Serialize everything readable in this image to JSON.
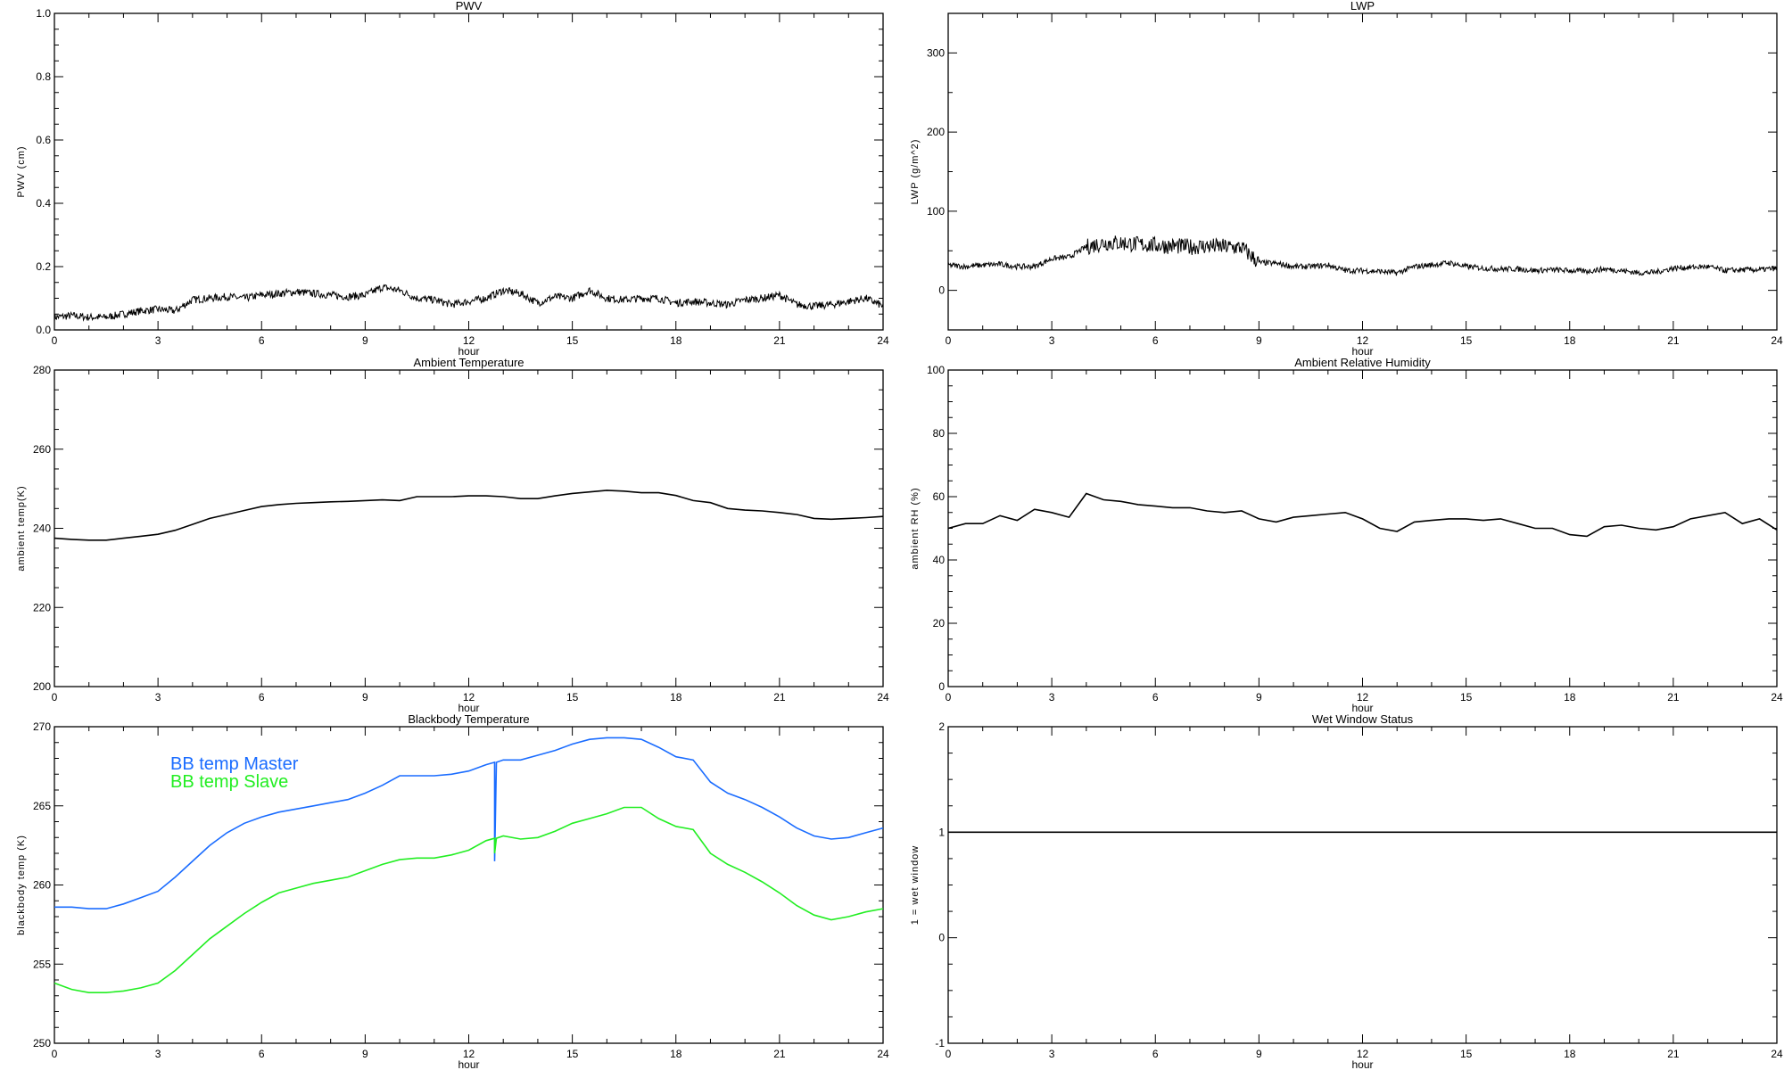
{
  "chart_data": [
    {
      "id": "pwv",
      "type": "line",
      "title": "PWV",
      "xlabel": "hour",
      "ylabel": "PWV (cm)",
      "xlim": [
        0,
        24
      ],
      "ylim": [
        0,
        1.0
      ],
      "xticks": [
        "0",
        "3",
        "6",
        "9",
        "12",
        "15",
        "18",
        "21",
        "24"
      ],
      "yticks": [
        "0.0",
        "0.2",
        "0.4",
        "0.6",
        "0.8",
        "1.0"
      ],
      "ytick_values": [
        0,
        0.2,
        0.4,
        0.6,
        0.8,
        1.0
      ],
      "yminor_step": 0.05,
      "noise_amplitude": 0.012,
      "series": [
        {
          "name": "PWV",
          "color": "#000000",
          "x_step_hours": 0.5,
          "values": [
            0.04,
            0.045,
            0.04,
            0.04,
            0.05,
            0.06,
            0.065,
            0.06,
            0.095,
            0.1,
            0.105,
            0.1,
            0.11,
            0.115,
            0.12,
            0.115,
            0.11,
            0.105,
            0.11,
            0.135,
            0.125,
            0.1,
            0.095,
            0.08,
            0.09,
            0.1,
            0.125,
            0.115,
            0.085,
            0.105,
            0.1,
            0.125,
            0.1,
            0.095,
            0.1,
            0.1,
            0.085,
            0.09,
            0.085,
            0.08,
            0.095,
            0.1,
            0.11,
            0.08,
            0.075,
            0.08,
            0.09,
            0.1,
            0.075
          ]
        }
      ]
    },
    {
      "id": "lwp",
      "type": "line",
      "title": "LWP",
      "xlabel": "hour",
      "ylabel": "LWP (g/m^2)",
      "xlim": [
        0,
        24
      ],
      "ylim": [
        -50,
        350
      ],
      "xticks": [
        "0",
        "3",
        "6",
        "9",
        "12",
        "15",
        "18",
        "21",
        "24"
      ],
      "yticks": [
        "0",
        "100",
        "200",
        "300"
      ],
      "ytick_values": [
        0,
        100,
        200,
        300
      ],
      "yminor_step": 50,
      "noise_amplitude": 3.5,
      "series": [
        {
          "name": "LWP",
          "color": "#000000",
          "x_step_hours": 0.5,
          "values": [
            32,
            30,
            32,
            33,
            30,
            30,
            40,
            42,
            55,
            60,
            60,
            58,
            57,
            56,
            55,
            56,
            55,
            54,
            35,
            34,
            30,
            30,
            32,
            25,
            25,
            24,
            22,
            30,
            32,
            35,
            30,
            28,
            27,
            27,
            25,
            26,
            25,
            24,
            27,
            25,
            22,
            23,
            28,
            29,
            30,
            25,
            26,
            26,
            28
          ]
        }
      ]
    },
    {
      "id": "ambient-temp",
      "type": "line",
      "title": "Ambient Temperature",
      "xlabel": "hour",
      "ylabel": "ambient temp(K)",
      "xlim": [
        0,
        24
      ],
      "ylim": [
        200,
        280
      ],
      "xticks": [
        "0",
        "3",
        "6",
        "9",
        "12",
        "15",
        "18",
        "21",
        "24"
      ],
      "yticks": [
        "200",
        "220",
        "240",
        "260",
        "280"
      ],
      "ytick_values": [
        200,
        220,
        240,
        260,
        280
      ],
      "yminor_step": 5,
      "noise_amplitude": 0,
      "series": [
        {
          "name": "ambient temp",
          "color": "#000000",
          "x_step_hours": 0.5,
          "values": [
            237.5,
            237.2,
            237,
            237,
            237.5,
            238,
            238.5,
            239.5,
            241,
            242.5,
            243.5,
            244.5,
            245.5,
            246,
            246.3,
            246.5,
            246.7,
            246.8,
            247,
            247.2,
            247,
            248,
            248,
            248,
            248.2,
            248.2,
            248,
            247.5,
            247.5,
            248.2,
            248.8,
            249.2,
            249.6,
            249.4,
            249,
            249,
            248.3,
            247,
            246.5,
            245,
            244.6,
            244.4,
            244,
            243.5,
            242.5,
            242.3,
            242.5,
            242.7,
            243
          ]
        }
      ]
    },
    {
      "id": "ambient-rh",
      "type": "line",
      "title": "Ambient Relative Humidity",
      "xlabel": "hour",
      "ylabel": "ambient RH (%)",
      "xlim": [
        0,
        24
      ],
      "ylim": [
        0,
        100
      ],
      "xticks": [
        "0",
        "3",
        "6",
        "9",
        "12",
        "15",
        "18",
        "21",
        "24"
      ],
      "yticks": [
        "0",
        "20",
        "40",
        "60",
        "80",
        "100"
      ],
      "ytick_values": [
        0,
        20,
        40,
        60,
        80,
        100
      ],
      "yminor_step": 5,
      "noise_amplitude": 0,
      "series": [
        {
          "name": "ambient RH",
          "color": "#000000",
          "x_step_hours": 0.5,
          "values": [
            50,
            51.5,
            51.5,
            54,
            52.5,
            56,
            55,
            53.5,
            61,
            59,
            58.5,
            57.5,
            57,
            56.5,
            56.5,
            55.5,
            55,
            55.5,
            53,
            52,
            53.5,
            54,
            54.5,
            55,
            53,
            50,
            49,
            52,
            52.5,
            53,
            53,
            52.5,
            53,
            51.5,
            50,
            50,
            48,
            47.5,
            50.5,
            51,
            50,
            49.5,
            50.5,
            53,
            54,
            55,
            51.5,
            53,
            49.5
          ]
        }
      ]
    },
    {
      "id": "blackbody-temp",
      "type": "line",
      "title": "Blackbody Temperature",
      "xlabel": "hour",
      "ylabel": "blackbody temp (K)",
      "xlim": [
        0,
        24
      ],
      "ylim": [
        250,
        270
      ],
      "xticks": [
        "0",
        "3",
        "6",
        "9",
        "12",
        "15",
        "18",
        "21",
        "24"
      ],
      "yticks": [
        "250",
        "255",
        "260",
        "265",
        "270"
      ],
      "ytick_values": [
        250,
        255,
        260,
        265,
        270
      ],
      "yminor_step": 1,
      "noise_amplitude": 0,
      "legend": {
        "placement": "top-left"
      },
      "series": [
        {
          "name": "BB temp Master",
          "color": "#1a6cff",
          "x_step_hours": 0.5,
          "spike": {
            "x": 12.75,
            "y": 261.5
          },
          "values": [
            258.6,
            258.6,
            258.5,
            258.5,
            258.8,
            259.2,
            259.6,
            260.5,
            261.5,
            262.5,
            263.3,
            263.9,
            264.3,
            264.6,
            264.8,
            265,
            265.2,
            265.4,
            265.8,
            266.3,
            266.9,
            266.9,
            266.9,
            267,
            267.2,
            267.6,
            267.9,
            267.9,
            268.2,
            268.5,
            268.9,
            269.2,
            269.3,
            269.3,
            269.2,
            268.7,
            268.1,
            267.9,
            266.5,
            265.8,
            265.4,
            264.9,
            264.3,
            263.6,
            263.1,
            262.9,
            263,
            263.3,
            263.6
          ]
        },
        {
          "name": "BB temp Slave",
          "color": "#22ee22",
          "x_step_hours": 0.5,
          "spike": {
            "x": 12.75,
            "y": 262
          },
          "values": [
            253.8,
            253.4,
            253.2,
            253.2,
            253.3,
            253.5,
            253.8,
            254.6,
            255.6,
            256.6,
            257.4,
            258.2,
            258.9,
            259.5,
            259.8,
            260.1,
            260.3,
            260.5,
            260.9,
            261.3,
            261.6,
            261.7,
            261.7,
            261.9,
            262.2,
            262.8,
            263.1,
            262.9,
            263,
            263.4,
            263.9,
            264.2,
            264.5,
            264.9,
            264.9,
            264.2,
            263.7,
            263.5,
            262,
            261.3,
            260.8,
            260.2,
            259.5,
            258.7,
            258.1,
            257.8,
            258,
            258.3,
            258.5
          ]
        }
      ]
    },
    {
      "id": "wet-window",
      "type": "line",
      "title": "Wet Window Status",
      "xlabel": "hour",
      "ylabel": "1 = wet window",
      "xlim": [
        0,
        24
      ],
      "ylim": [
        -1,
        2
      ],
      "xticks": [
        "0",
        "3",
        "6",
        "9",
        "12",
        "15",
        "18",
        "21",
        "24"
      ],
      "yticks": [
        "-1",
        "0",
        "1",
        "2"
      ],
      "ytick_values": [
        -1,
        0,
        1,
        2
      ],
      "yminor_step": 0.25,
      "noise_amplitude": 0,
      "series": [
        {
          "name": "wet window",
          "color": "#000000",
          "x_step_hours": 24,
          "values": [
            1,
            1
          ]
        }
      ]
    }
  ]
}
